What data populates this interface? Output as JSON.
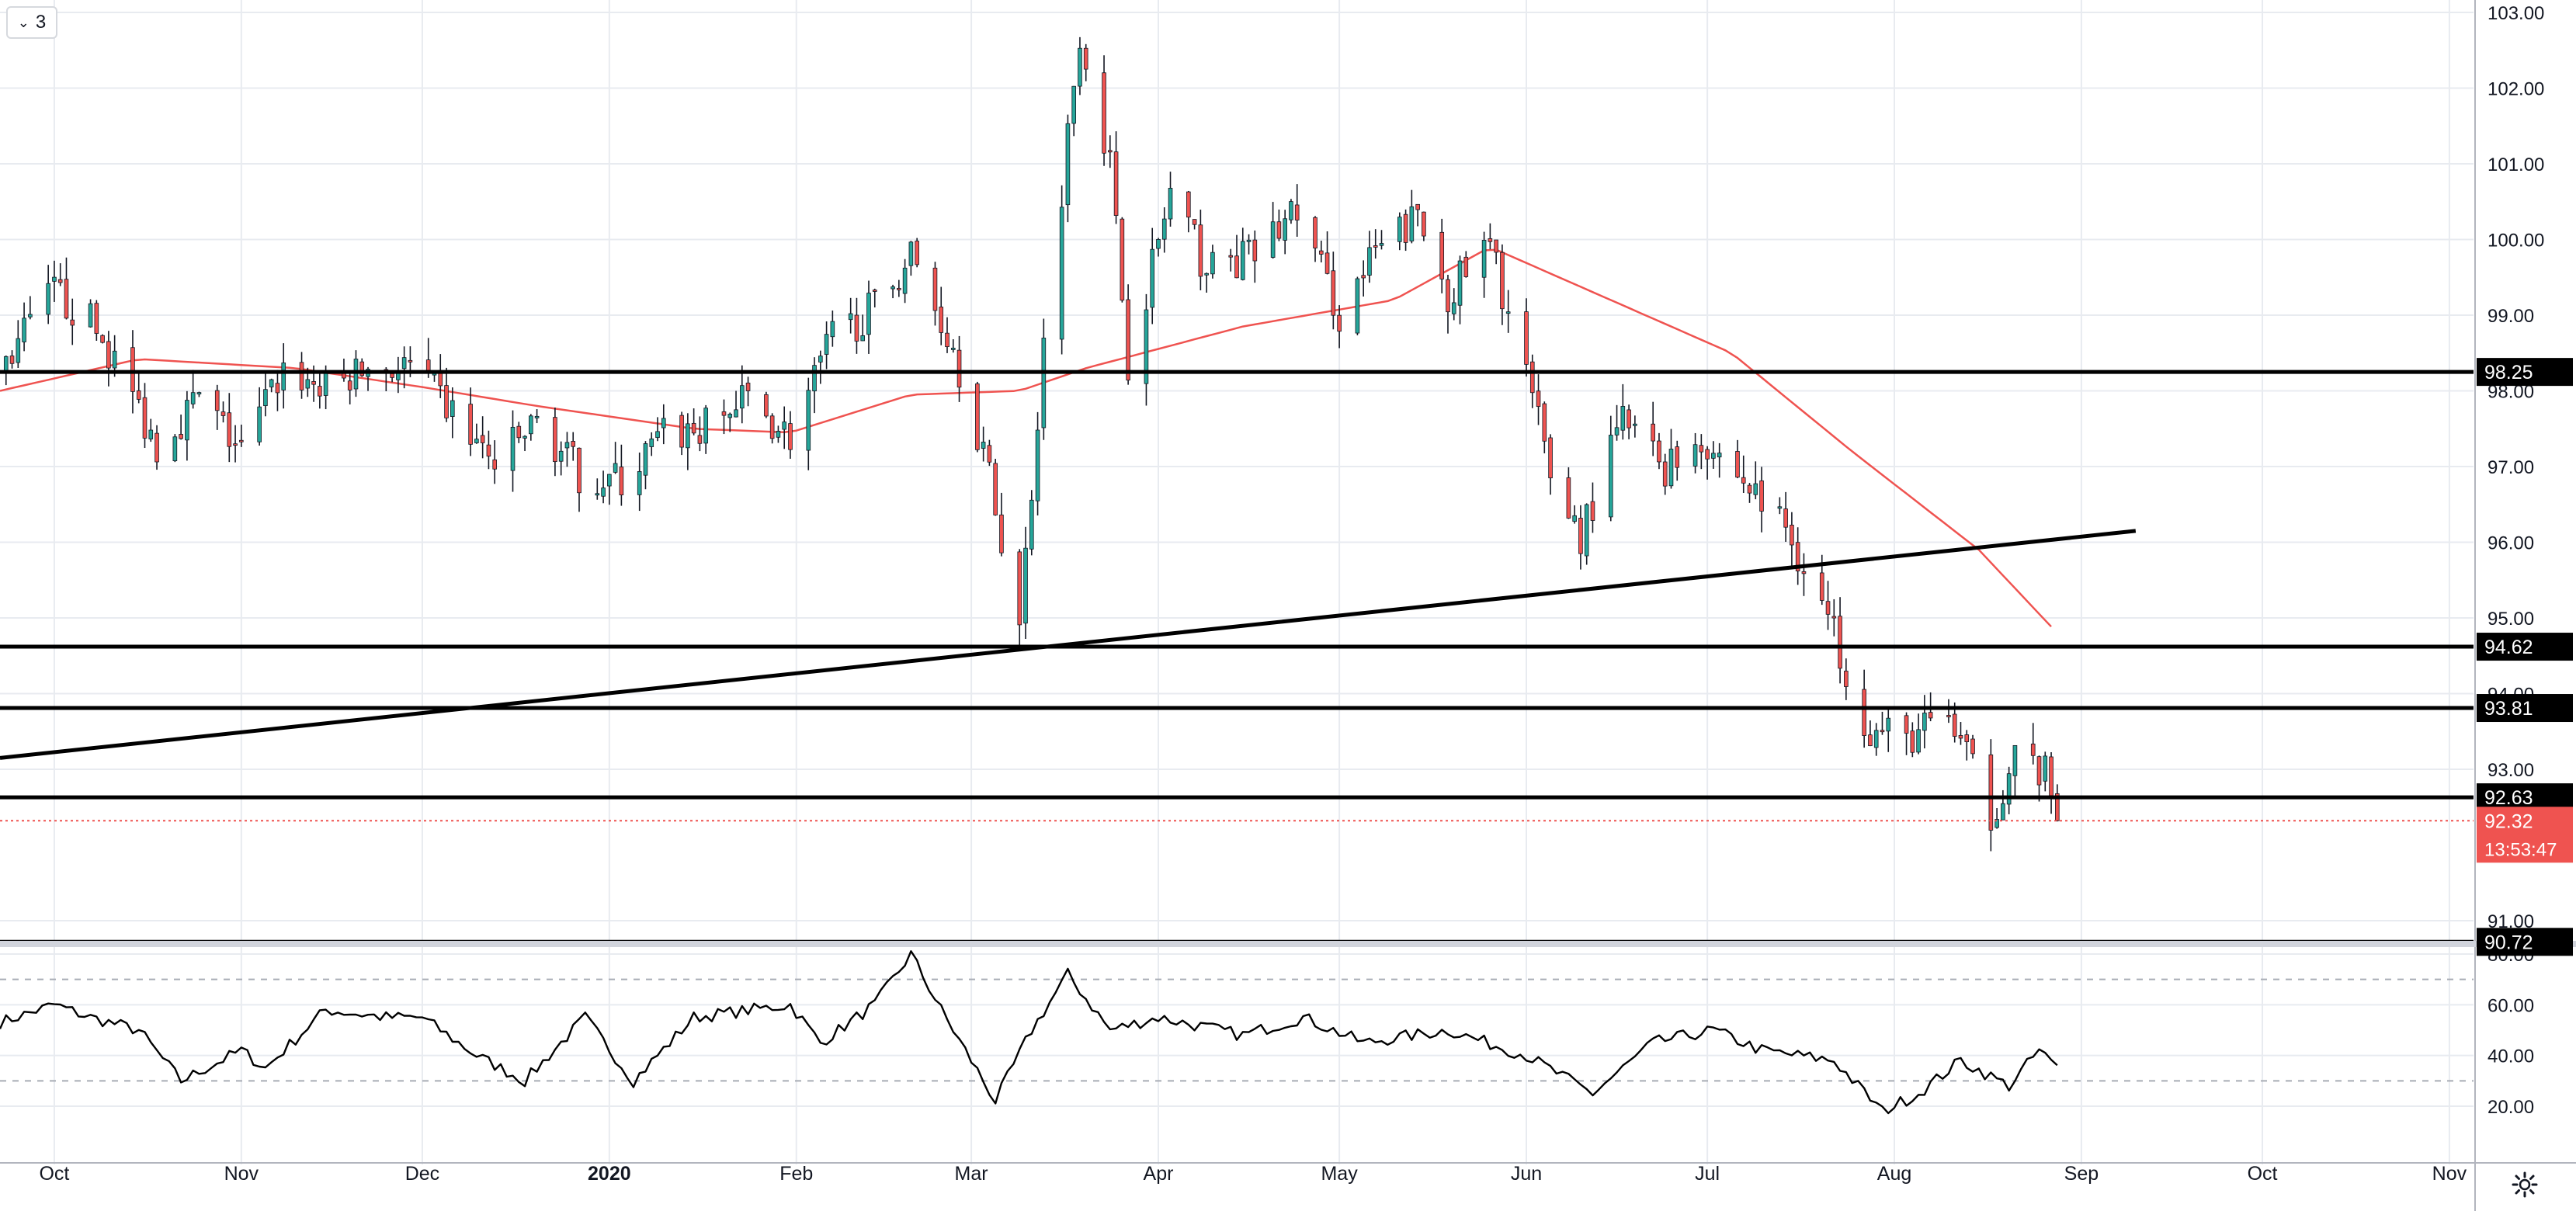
{
  "controls": {
    "collapse_label": "3",
    "settings_icon": "gear-icon",
    "collapse_icon": "chevron-down-icon"
  },
  "colors": {
    "up": "#26a69a",
    "down": "#ef5350",
    "ma": "#ef5350",
    "level": "#000000",
    "rsi": "#000000",
    "grid": "#e8ebf0"
  },
  "chart_data": [
    {
      "type": "candlestick",
      "timeframe_note": "",
      "price_axis": {
        "ticks": [
          "103.00",
          "102.00",
          "101.00",
          "100.00",
          "99.00",
          "98.00",
          "97.00",
          "96.00",
          "95.00",
          "94.00",
          "93.00",
          "91.00"
        ],
        "ylim": [
          90.72,
          103.0
        ]
      },
      "time_axis": {
        "labels": [
          "Oct",
          "Nov",
          "Dec",
          "2020",
          "Feb",
          "Mar",
          "Apr",
          "May",
          "Jun",
          "Jul",
          "Aug",
          "Sep",
          "Oct",
          "Nov"
        ],
        "xlim": [
          "2019-09-22",
          "2020-11-05"
        ]
      },
      "horizontal_levels": [
        "98.25",
        "94.62",
        "93.81",
        "92.63",
        "90.72"
      ],
      "last_price": "92.32",
      "countdown": "13:53:47",
      "trendline": {
        "from": {
          "date": "2019-09-22",
          "price": 93.15
        },
        "to": {
          "date": "2020-09-10",
          "price": 96.15
        }
      },
      "close_anchors": [
        [
          "2019-09-23",
          98.4
        ],
        [
          "2019-10-01",
          99.3
        ],
        [
          "2019-10-07",
          98.9
        ],
        [
          "2019-10-11",
          98.4
        ],
        [
          "2019-10-18",
          97.3
        ],
        [
          "2019-10-25",
          97.9
        ],
        [
          "2019-11-01",
          97.2
        ],
        [
          "2019-11-08",
          98.3
        ],
        [
          "2019-11-15",
          98.0
        ],
        [
          "2019-11-22",
          98.3
        ],
        [
          "2019-11-29",
          98.3
        ],
        [
          "2019-12-06",
          97.7
        ],
        [
          "2019-12-13",
          97.0
        ],
        [
          "2019-12-20",
          97.6
        ],
        [
          "2019-12-27",
          96.9
        ],
        [
          "2020-01-03",
          96.8
        ],
        [
          "2020-01-10",
          97.4
        ],
        [
          "2020-01-17",
          97.5
        ],
        [
          "2020-01-24",
          97.9
        ],
        [
          "2020-01-31",
          97.4
        ],
        [
          "2020-02-07",
          98.7
        ],
        [
          "2020-02-14",
          99.1
        ],
        [
          "2020-02-20",
          99.8
        ],
        [
          "2020-02-27",
          98.6
        ],
        [
          "2020-03-03",
          97.2
        ],
        [
          "2020-03-09",
          94.9
        ],
        [
          "2020-03-13",
          98.6
        ],
        [
          "2020-03-19",
          102.8
        ],
        [
          "2020-03-24",
          101.0
        ],
        [
          "2020-03-27",
          98.4
        ],
        [
          "2020-04-03",
          100.6
        ],
        [
          "2020-04-09",
          99.6
        ],
        [
          "2020-04-17",
          99.8
        ],
        [
          "2020-04-24",
          100.4
        ],
        [
          "2020-05-01",
          99.0
        ],
        [
          "2020-05-07",
          99.8
        ],
        [
          "2020-05-14",
          100.3
        ],
        [
          "2020-05-19",
          99.3
        ],
        [
          "2020-05-26",
          99.9
        ],
        [
          "2020-06-01",
          98.2
        ],
        [
          "2020-06-05",
          96.9
        ],
        [
          "2020-06-10",
          96.1
        ],
        [
          "2020-06-17",
          97.6
        ],
        [
          "2020-06-24",
          97.0
        ],
        [
          "2020-06-30",
          97.4
        ],
        [
          "2020-07-07",
          96.8
        ],
        [
          "2020-07-14",
          96.2
        ],
        [
          "2020-07-21",
          95.0
        ],
        [
          "2020-07-28",
          93.5
        ],
        [
          "2020-08-03",
          93.4
        ],
        [
          "2020-08-10",
          93.7
        ],
        [
          "2020-08-17",
          92.4
        ],
        [
          "2020-08-21",
          93.2
        ],
        [
          "2020-08-26",
          92.9
        ],
        [
          "2020-08-28",
          92.32
        ]
      ],
      "ma_anchors": [
        [
          "2019-09-22",
          98.0
        ],
        [
          "2019-10-15",
          98.42
        ],
        [
          "2019-11-10",
          98.3
        ],
        [
          "2019-12-01",
          98.05
        ],
        [
          "2019-12-20",
          97.8
        ],
        [
          "2020-01-15",
          97.5
        ],
        [
          "2020-01-31",
          97.45
        ],
        [
          "2020-02-20",
          97.95
        ],
        [
          "2020-03-09",
          98.0
        ],
        [
          "2020-03-20",
          98.3
        ],
        [
          "2020-04-15",
          98.85
        ],
        [
          "2020-05-10",
          99.2
        ],
        [
          "2020-05-26",
          99.9
        ],
        [
          "2020-06-15",
          99.2
        ],
        [
          "2020-07-05",
          98.5
        ],
        [
          "2020-07-25",
          97.2
        ],
        [
          "2020-08-15",
          95.9
        ],
        [
          "2020-08-28",
          94.8
        ]
      ]
    },
    {
      "type": "line",
      "series": [
        {
          "values_ref": "rsi_anchors"
        }
      ],
      "y_axis": {
        "ticks": [
          "80.00",
          "60.00",
          "40.00",
          "20.00"
        ],
        "ylim": [
          15,
          85
        ]
      },
      "bands": [
        70,
        30
      ],
      "rsi_anchors": [
        [
          "2019-09-22",
          53
        ],
        [
          "2019-10-01",
          60
        ],
        [
          "2019-10-07",
          55
        ],
        [
          "2019-10-15",
          50
        ],
        [
          "2019-10-22",
          30
        ],
        [
          "2019-11-01",
          42
        ],
        [
          "2019-11-05",
          35
        ],
        [
          "2019-11-15",
          58
        ],
        [
          "2019-11-25",
          55
        ],
        [
          "2019-12-01",
          55
        ],
        [
          "2019-12-10",
          40
        ],
        [
          "2019-12-18",
          30
        ],
        [
          "2019-12-28",
          55
        ],
        [
          "2020-01-05",
          30
        ],
        [
          "2020-01-15",
          55
        ],
        [
          "2020-01-31",
          60
        ],
        [
          "2020-02-05",
          45
        ],
        [
          "2020-02-14",
          60
        ],
        [
          "2020-02-20",
          80
        ],
        [
          "2020-02-25",
          58
        ],
        [
          "2020-03-05",
          22
        ],
        [
          "2020-03-11",
          50
        ],
        [
          "2020-03-17",
          72
        ],
        [
          "2020-03-24",
          50
        ],
        [
          "2020-04-01",
          55
        ],
        [
          "2020-04-15",
          48
        ],
        [
          "2020-04-25",
          55
        ],
        [
          "2020-05-05",
          45
        ],
        [
          "2020-05-19",
          50
        ],
        [
          "2020-06-01",
          40
        ],
        [
          "2020-06-12",
          25
        ],
        [
          "2020-06-22",
          45
        ],
        [
          "2020-07-02",
          50
        ],
        [
          "2020-07-10",
          42
        ],
        [
          "2020-07-22",
          38
        ],
        [
          "2020-07-30",
          18
        ],
        [
          "2020-08-05",
          25
        ],
        [
          "2020-08-12",
          38
        ],
        [
          "2020-08-20",
          28
        ],
        [
          "2020-08-25",
          42
        ],
        [
          "2020-08-28",
          35
        ]
      ]
    }
  ]
}
